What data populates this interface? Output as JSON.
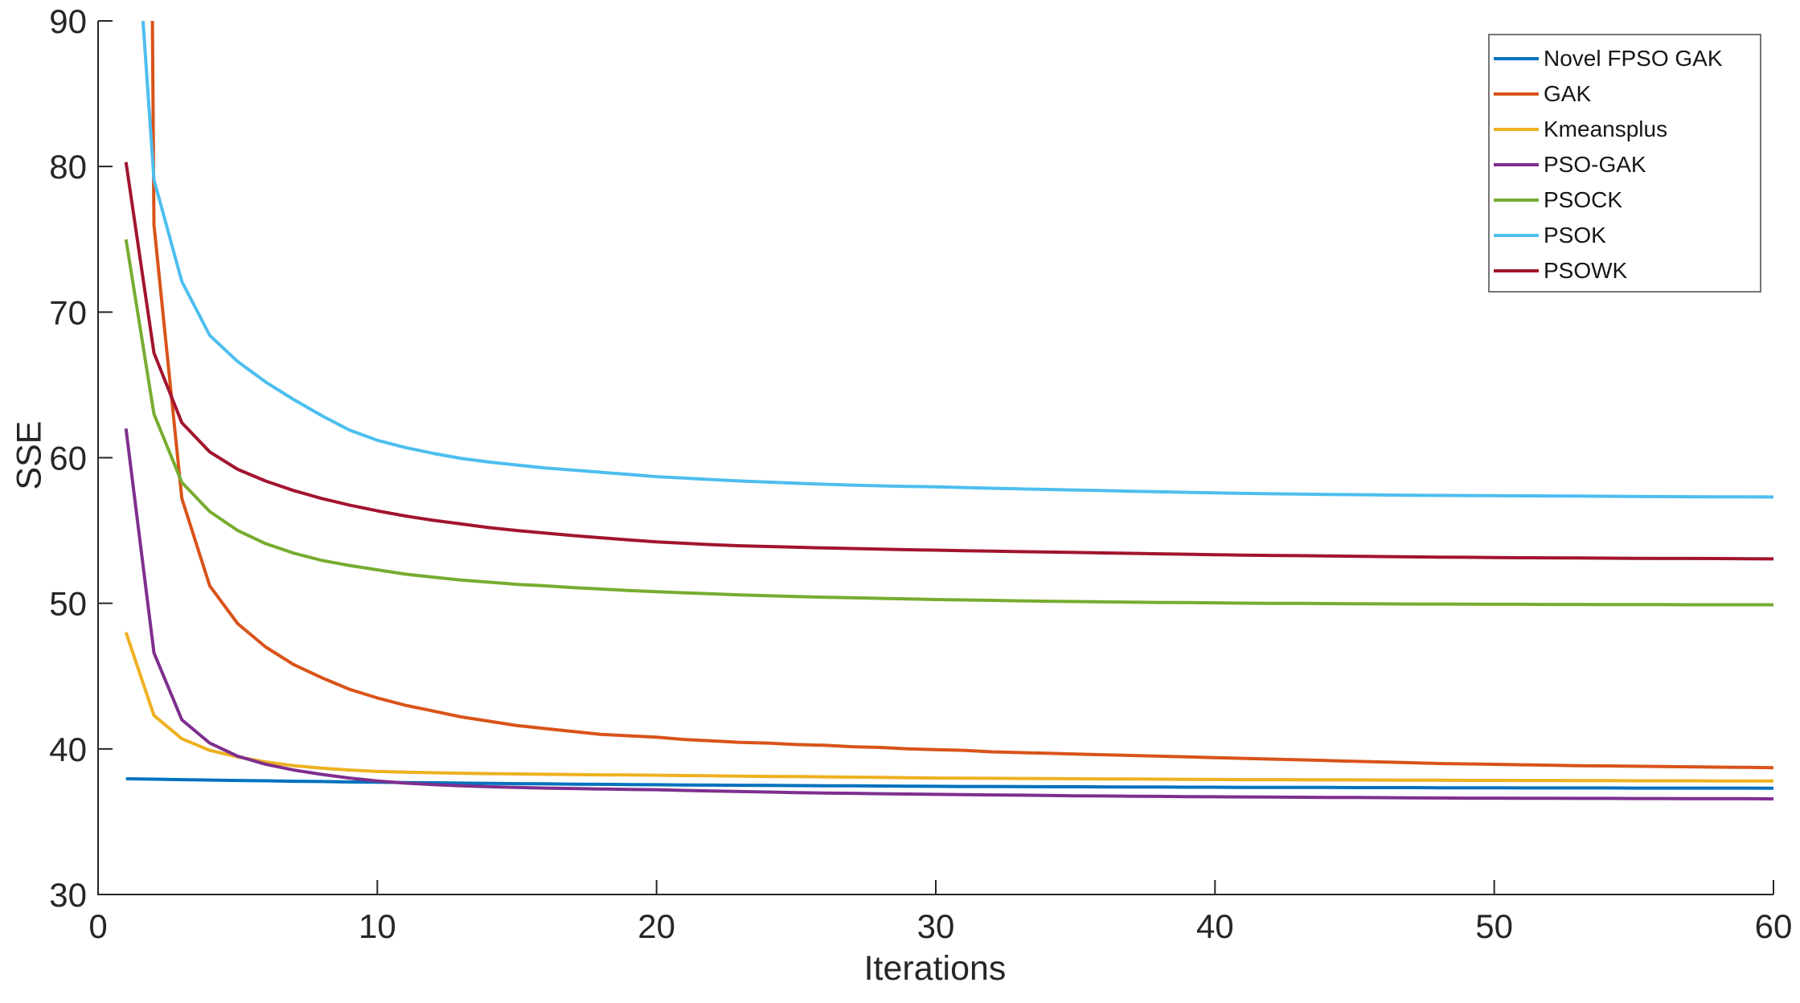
{
  "page": {
    "background_color": "#ffffff",
    "axis_color": "#262626",
    "tick_label_color": "#262626",
    "legend_border_color": "#757575"
  },
  "chart_data": {
    "type": "line",
    "title": "",
    "xlabel": "Iterations",
    "ylabel": "SSE",
    "xlim": [
      0,
      60
    ],
    "ylim": [
      30,
      90
    ],
    "x_ticks": [
      0,
      10,
      20,
      30,
      40,
      50,
      60
    ],
    "y_ticks": [
      30,
      40,
      50,
      60,
      70,
      80,
      90
    ],
    "grid": false,
    "legend_position": "top-right",
    "x": [
      1,
      2,
      3,
      4,
      5,
      6,
      7,
      8,
      9,
      10,
      11,
      12,
      13,
      14,
      15,
      16,
      17,
      18,
      19,
      20,
      21,
      22,
      23,
      24,
      25,
      26,
      27,
      28,
      29,
      30,
      31,
      32,
      33,
      34,
      35,
      36,
      37,
      38,
      39,
      40,
      41,
      42,
      43,
      44,
      45,
      46,
      47,
      48,
      49,
      50,
      51,
      52,
      53,
      54,
      55,
      56,
      57,
      58,
      59,
      60
    ],
    "series": [
      {
        "name": "Novel FPSO GAK",
        "color": "#0072BD",
        "values": [
          37.95,
          37.92,
          37.89,
          37.86,
          37.83,
          37.81,
          37.78,
          37.76,
          37.73,
          37.71,
          37.69,
          37.67,
          37.65,
          37.63,
          37.61,
          37.6,
          37.58,
          37.57,
          37.55,
          37.54,
          37.52,
          37.51,
          37.5,
          37.49,
          37.48,
          37.47,
          37.46,
          37.45,
          37.44,
          37.43,
          37.42,
          37.42,
          37.41,
          37.4,
          37.4,
          37.39,
          37.38,
          37.38,
          37.37,
          37.37,
          37.36,
          37.36,
          37.35,
          37.35,
          37.34,
          37.34,
          37.34,
          37.33,
          37.33,
          37.33,
          37.32,
          37.32,
          37.32,
          37.32,
          37.31,
          37.31,
          37.31,
          37.31,
          37.31,
          37.3
        ]
      },
      {
        "name": "GAK",
        "color": "#D95319",
        "values": [
          330,
          76.0,
          57.2,
          51.2,
          48.6,
          47.0,
          45.8,
          44.9,
          44.1,
          43.5,
          43.0,
          42.6,
          42.2,
          41.9,
          41.6,
          41.4,
          41.2,
          41.0,
          40.9,
          40.8,
          40.65,
          40.55,
          40.45,
          40.4,
          40.3,
          40.25,
          40.15,
          40.1,
          40.0,
          39.95,
          39.9,
          39.8,
          39.75,
          39.7,
          39.65,
          39.6,
          39.55,
          39.5,
          39.45,
          39.4,
          39.35,
          39.3,
          39.25,
          39.2,
          39.15,
          39.1,
          39.05,
          39.0,
          38.97,
          38.94,
          38.91,
          38.88,
          38.85,
          38.83,
          38.81,
          38.79,
          38.77,
          38.75,
          38.73,
          38.71
        ]
      },
      {
        "name": "Kmeansplus",
        "color": "#EDB120",
        "values": [
          48.0,
          42.3,
          40.7,
          39.9,
          39.45,
          39.1,
          38.85,
          38.68,
          38.55,
          38.45,
          38.4,
          38.36,
          38.33,
          38.3,
          38.28,
          38.26,
          38.24,
          38.22,
          38.21,
          38.19,
          38.17,
          38.15,
          38.13,
          38.11,
          38.1,
          38.08,
          38.06,
          38.04,
          38.02,
          38.0,
          37.99,
          37.98,
          37.97,
          37.96,
          37.95,
          37.94,
          37.93,
          37.92,
          37.91,
          37.9,
          37.89,
          37.89,
          37.88,
          37.87,
          37.87,
          37.86,
          37.85,
          37.85,
          37.84,
          37.84,
          37.83,
          37.83,
          37.82,
          37.82,
          37.81,
          37.81,
          37.81,
          37.8,
          37.8,
          37.8
        ]
      },
      {
        "name": "PSO-GAK",
        "color": "#7E2F8E",
        "values": [
          62.0,
          46.6,
          42.0,
          40.4,
          39.5,
          38.95,
          38.55,
          38.25,
          38.0,
          37.8,
          37.65,
          37.55,
          37.46,
          37.4,
          37.35,
          37.31,
          37.28,
          37.25,
          37.22,
          37.2,
          37.15,
          37.11,
          37.07,
          37.04,
          37.0,
          36.97,
          36.95,
          36.92,
          36.9,
          36.88,
          36.86,
          36.84,
          36.82,
          36.8,
          36.78,
          36.77,
          36.75,
          36.74,
          36.72,
          36.71,
          36.7,
          36.69,
          36.68,
          36.67,
          36.66,
          36.65,
          36.64,
          36.63,
          36.62,
          36.62,
          36.61,
          36.61,
          36.6,
          36.6,
          36.59,
          36.59,
          36.58,
          36.58,
          36.58,
          36.57
        ]
      },
      {
        "name": "PSOCK",
        "color": "#77AC30",
        "values": [
          75.0,
          63.0,
          58.3,
          56.3,
          55.0,
          54.1,
          53.45,
          52.95,
          52.6,
          52.3,
          52.0,
          51.8,
          51.6,
          51.45,
          51.3,
          51.2,
          51.08,
          50.98,
          50.88,
          50.8,
          50.72,
          50.65,
          50.58,
          50.52,
          50.47,
          50.42,
          50.38,
          50.34,
          50.3,
          50.26,
          50.23,
          50.2,
          50.17,
          50.14,
          50.12,
          50.1,
          50.08,
          50.06,
          50.05,
          50.03,
          50.01,
          50.0,
          49.99,
          49.98,
          49.97,
          49.96,
          49.95,
          49.95,
          49.94,
          49.93,
          49.93,
          49.92,
          49.92,
          49.91,
          49.91,
          49.91,
          49.9,
          49.9,
          49.9,
          49.9
        ]
      },
      {
        "name": "PSOK",
        "color": "#4DBEEE",
        "values": [
          107,
          79.1,
          72.1,
          68.4,
          66.6,
          65.2,
          64.0,
          62.9,
          61.9,
          61.2,
          60.7,
          60.3,
          59.95,
          59.7,
          59.5,
          59.3,
          59.15,
          59.0,
          58.85,
          58.7,
          58.6,
          58.5,
          58.4,
          58.32,
          58.25,
          58.18,
          58.12,
          58.07,
          58.03,
          58.0,
          57.95,
          57.9,
          57.86,
          57.82,
          57.78,
          57.74,
          57.7,
          57.66,
          57.62,
          57.58,
          57.55,
          57.52,
          57.5,
          57.48,
          57.46,
          57.44,
          57.42,
          57.41,
          57.4,
          57.39,
          57.38,
          57.37,
          57.36,
          57.35,
          57.34,
          57.33,
          57.32,
          57.31,
          57.31,
          57.3
        ]
      },
      {
        "name": "PSOWK",
        "color": "#A2142F",
        "values": [
          80.3,
          67.2,
          62.4,
          60.4,
          59.2,
          58.4,
          57.75,
          57.2,
          56.75,
          56.35,
          56.0,
          55.7,
          55.45,
          55.2,
          55.0,
          54.82,
          54.65,
          54.5,
          54.36,
          54.22,
          54.12,
          54.03,
          53.95,
          53.9,
          53.85,
          53.8,
          53.76,
          53.72,
          53.68,
          53.65,
          53.61,
          53.58,
          53.55,
          53.52,
          53.49,
          53.46,
          53.43,
          53.4,
          53.37,
          53.34,
          53.31,
          53.29,
          53.27,
          53.25,
          53.23,
          53.21,
          53.19,
          53.17,
          53.16,
          53.14,
          53.13,
          53.12,
          53.11,
          53.1,
          53.09,
          53.08,
          53.08,
          53.07,
          53.06,
          53.05
        ]
      }
    ]
  }
}
